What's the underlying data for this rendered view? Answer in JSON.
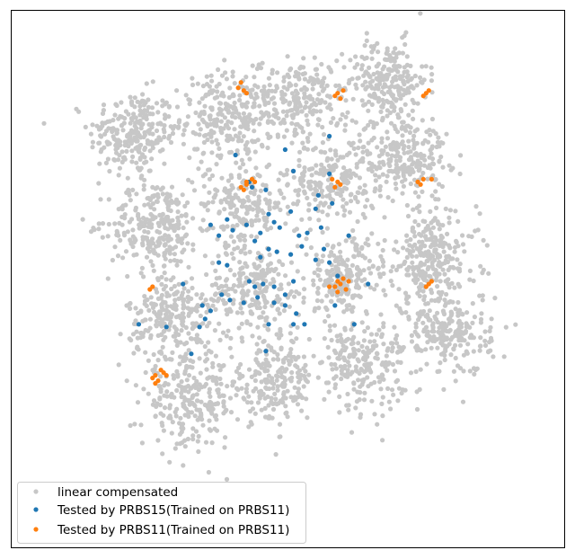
{
  "chart_data": {
    "type": "scatter",
    "title": "",
    "xlabel": "",
    "ylabel": "",
    "axes_ticks": "none",
    "grid": false,
    "legend_position": "lower-left",
    "xlim": [
      0,
      100
    ],
    "ylim": [
      0,
      100
    ],
    "series": [
      {
        "name": "linear compensated",
        "color": "#c7c7c7",
        "clusters": [
          {
            "cx": 22,
            "cy": 77,
            "n": 240,
            "spread": 4.0
          },
          {
            "cx": 39,
            "cy": 80,
            "n": 260,
            "spread": 4.2
          },
          {
            "cx": 52,
            "cy": 83,
            "n": 220,
            "spread": 4.0
          },
          {
            "cx": 68,
            "cy": 87,
            "n": 220,
            "spread": 3.6
          },
          {
            "cx": 26,
            "cy": 60,
            "n": 260,
            "spread": 4.2
          },
          {
            "cx": 42,
            "cy": 64,
            "n": 200,
            "spread": 4.0
          },
          {
            "cx": 58,
            "cy": 68,
            "n": 220,
            "spread": 4.0
          },
          {
            "cx": 71,
            "cy": 73,
            "n": 240,
            "spread": 4.0
          },
          {
            "cx": 29,
            "cy": 43,
            "n": 240,
            "spread": 4.0
          },
          {
            "cx": 44,
            "cy": 48,
            "n": 200,
            "spread": 4.2
          },
          {
            "cx": 60,
            "cy": 50,
            "n": 220,
            "spread": 3.8
          },
          {
            "cx": 76,
            "cy": 54,
            "n": 260,
            "spread": 4.2
          },
          {
            "cx": 32,
            "cy": 27,
            "n": 240,
            "spread": 4.2
          },
          {
            "cx": 47,
            "cy": 31,
            "n": 220,
            "spread": 4.0
          },
          {
            "cx": 63,
            "cy": 34,
            "n": 220,
            "spread": 4.0
          },
          {
            "cx": 79,
            "cy": 40,
            "n": 240,
            "spread": 4.0
          }
        ]
      },
      {
        "name": "Tested by PRBS15(Trained on PRBS11)",
        "color": "#1f77b4",
        "points": [
          [
            49.5,
            74.0
          ],
          [
            57.5,
            76.5
          ],
          [
            40.5,
            73.0
          ],
          [
            51.0,
            70.0
          ],
          [
            57.5,
            69.5
          ],
          [
            43.0,
            68.0
          ],
          [
            43.5,
            67.0
          ],
          [
            46.0,
            66.5
          ],
          [
            55.5,
            65.5
          ],
          [
            55.0,
            63.0
          ],
          [
            58.0,
            64.0
          ],
          [
            50.5,
            62.5
          ],
          [
            46.5,
            62.0
          ],
          [
            47.5,
            60.5
          ],
          [
            42.5,
            60.0
          ],
          [
            39.0,
            61.0
          ],
          [
            36.0,
            60.0
          ],
          [
            37.5,
            58.0
          ],
          [
            40.0,
            59.0
          ],
          [
            45.0,
            58.5
          ],
          [
            48.5,
            59.5
          ],
          [
            52.0,
            58.0
          ],
          [
            56.0,
            59.5
          ],
          [
            53.5,
            58.5
          ],
          [
            52.5,
            56.0
          ],
          [
            56.5,
            55.5
          ],
          [
            44.0,
            57.0
          ],
          [
            46.5,
            55.5
          ],
          [
            45.0,
            54.0
          ],
          [
            48.0,
            55.0
          ],
          [
            50.5,
            54.5
          ],
          [
            37.5,
            53.0
          ],
          [
            39.0,
            52.5
          ],
          [
            55.0,
            53.5
          ],
          [
            57.5,
            53.0
          ],
          [
            59.0,
            50.5
          ],
          [
            64.5,
            49.0
          ],
          [
            43.0,
            49.5
          ],
          [
            44.0,
            48.5
          ],
          [
            45.5,
            49.0
          ],
          [
            47.5,
            48.5
          ],
          [
            51.0,
            49.5
          ],
          [
            49.5,
            47.0
          ],
          [
            44.5,
            46.5
          ],
          [
            39.5,
            46.0
          ],
          [
            31.0,
            49.0
          ],
          [
            34.5,
            45.0
          ],
          [
            36.0,
            44.0
          ],
          [
            38.0,
            47.0
          ],
          [
            42.0,
            45.5
          ],
          [
            47.5,
            45.5
          ],
          [
            49.5,
            45.0
          ],
          [
            51.5,
            43.5
          ],
          [
            53.0,
            41.5
          ],
          [
            51.0,
            41.5
          ],
          [
            46.5,
            41.5
          ],
          [
            35.0,
            42.5
          ],
          [
            34.0,
            41.0
          ],
          [
            28.0,
            41.0
          ],
          [
            23.0,
            41.5
          ],
          [
            58.5,
            45.0
          ],
          [
            62.0,
            41.5
          ],
          [
            61.0,
            58.0
          ],
          [
            46.0,
            36.5
          ],
          [
            32.5,
            36.0
          ]
        ]
      },
      {
        "name": "Tested by PRBS11(Trained on PRBS11)",
        "color": "#ff7f0e",
        "points": [
          [
            41.5,
            86.5
          ],
          [
            42.0,
            85.0
          ],
          [
            41.0,
            85.5
          ],
          [
            42.5,
            84.5
          ],
          [
            59.0,
            84.5
          ],
          [
            60.0,
            85.0
          ],
          [
            58.5,
            84.0
          ],
          [
            59.5,
            83.5
          ],
          [
            75.0,
            84.5
          ],
          [
            74.5,
            84.0
          ],
          [
            75.5,
            85.0
          ],
          [
            42.5,
            68.0
          ],
          [
            43.5,
            68.5
          ],
          [
            41.5,
            67.0
          ],
          [
            42.0,
            66.5
          ],
          [
            44.0,
            68.0
          ],
          [
            42.5,
            67.5
          ],
          [
            58.0,
            68.5
          ],
          [
            59.0,
            68.0
          ],
          [
            59.5,
            67.5
          ],
          [
            58.5,
            67.0
          ],
          [
            74.5,
            68.5
          ],
          [
            76.0,
            68.5
          ],
          [
            74.0,
            67.5
          ],
          [
            73.5,
            68.0
          ],
          [
            59.0,
            49.5
          ],
          [
            60.0,
            50.0
          ],
          [
            61.0,
            49.5
          ],
          [
            58.5,
            48.5
          ],
          [
            59.5,
            49.0
          ],
          [
            60.5,
            48.0
          ],
          [
            57.5,
            48.5
          ],
          [
            59.0,
            47.5
          ],
          [
            25.5,
            48.5
          ],
          [
            25.0,
            48.0
          ],
          [
            75.5,
            49.0
          ],
          [
            76.0,
            49.5
          ],
          [
            75.0,
            48.5
          ],
          [
            26.0,
            32.0
          ],
          [
            27.0,
            33.0
          ],
          [
            25.5,
            31.5
          ],
          [
            27.5,
            32.5
          ],
          [
            26.5,
            31.0
          ],
          [
            28.0,
            32.0
          ],
          [
            26.0,
            30.5
          ]
        ]
      }
    ]
  }
}
